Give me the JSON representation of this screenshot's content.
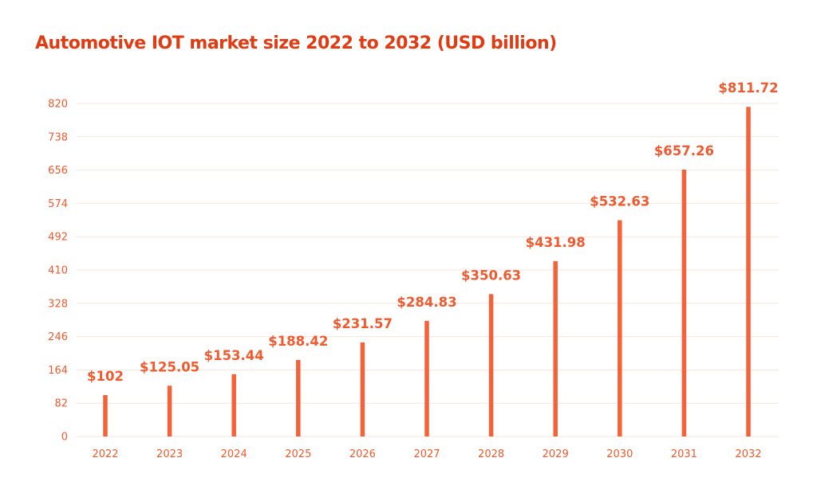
{
  "chart_data": {
    "type": "bar",
    "title": "Automotive IOT market size 2022 to 2032 (USD billion)",
    "xlabel": "",
    "ylabel": "",
    "categories": [
      "2022",
      "2023",
      "2024",
      "2025",
      "2026",
      "2027",
      "2028",
      "2029",
      "2030",
      "2031",
      "2032"
    ],
    "values": [
      102,
      125.05,
      153.44,
      188.42,
      231.57,
      284.83,
      350.63,
      431.98,
      532.63,
      657.26,
      811.72
    ],
    "data_labels": [
      "$102",
      "$125.05",
      "$153.44",
      "$188.42",
      "$231.57",
      "$284.83",
      "$350.63",
      "$431.98",
      "$532.63",
      "$657.26",
      "$811.72"
    ],
    "yticks": [
      "0",
      "82",
      "164",
      "246",
      "328",
      "410",
      "492",
      "574",
      "656",
      "738",
      "820"
    ],
    "ylim": [
      0,
      820
    ],
    "grid": true,
    "legend": "none",
    "colors": {
      "bar": "#f4623a",
      "title": "#e23b12",
      "text": "#f05a2e",
      "grid": "#fbe3dc"
    }
  }
}
